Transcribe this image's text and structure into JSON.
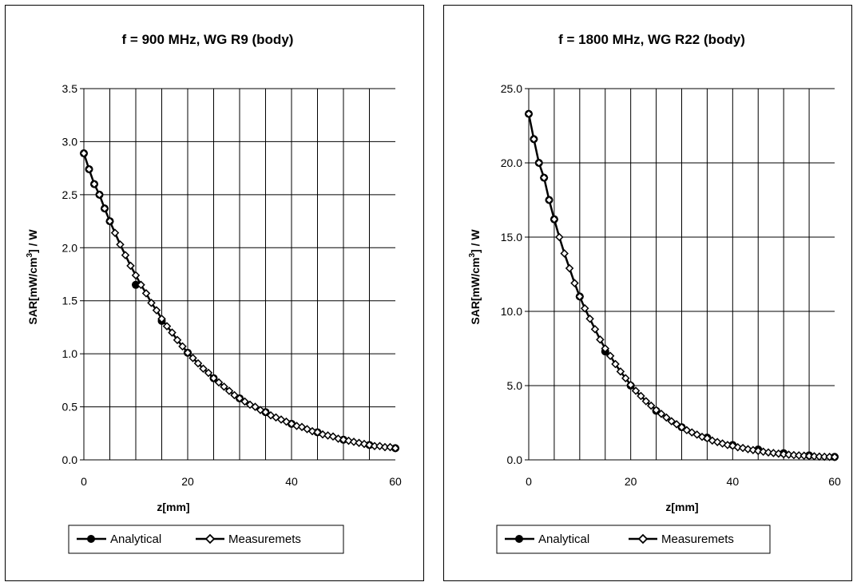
{
  "chart_data": [
    {
      "type": "line",
      "title": "f = 900 MHz, WG R9 (body)",
      "xlabel": "z[mm]",
      "ylabel": "SAR[mW/cm3] / W",
      "ylabel_main": "SAR[mW/cm",
      "ylabel_sup": "3",
      "ylabel_tail": "] / W",
      "xlim": [
        0,
        60
      ],
      "ylim": [
        0,
        3.5
      ],
      "x_ticks": [
        "0",
        "20",
        "40",
        "60"
      ],
      "y_ticks": [
        "0.0",
        "0.5",
        "1.0",
        "1.5",
        "2.0",
        "2.5",
        "3.0",
        "3.5"
      ],
      "grid": true,
      "legend_position": "bottom",
      "series": [
        {
          "name": "Analytical",
          "marker": "filled-circle",
          "x": [
            0,
            1,
            2,
            3,
            4,
            5,
            10,
            15,
            20,
            25,
            30,
            35,
            40,
            45,
            50,
            55,
            60
          ],
          "y": [
            2.89,
            2.74,
            2.6,
            2.5,
            2.37,
            2.25,
            1.65,
            1.31,
            1.01,
            0.77,
            0.58,
            0.45,
            0.34,
            0.26,
            0.19,
            0.14,
            0.11
          ]
        },
        {
          "name": "Measuremets",
          "marker": "open-diamond",
          "x": [
            0,
            1,
            2,
            3,
            4,
            5,
            6,
            7,
            8,
            9,
            10,
            11,
            12,
            13,
            14,
            15,
            16,
            17,
            18,
            19,
            20,
            21,
            22,
            23,
            24,
            25,
            26,
            27,
            28,
            29,
            30,
            31,
            32,
            33,
            34,
            35,
            36,
            37,
            38,
            39,
            40,
            41,
            42,
            43,
            44,
            45,
            46,
            47,
            48,
            49,
            50,
            51,
            52,
            53,
            54,
            55,
            56,
            57,
            58,
            59,
            60
          ],
          "y": [
            2.89,
            2.74,
            2.6,
            2.5,
            2.37,
            2.25,
            2.14,
            2.03,
            1.93,
            1.83,
            1.74,
            1.65,
            1.57,
            1.48,
            1.41,
            1.33,
            1.26,
            1.2,
            1.13,
            1.07,
            1.01,
            0.96,
            0.91,
            0.86,
            0.82,
            0.77,
            0.73,
            0.69,
            0.65,
            0.61,
            0.58,
            0.55,
            0.52,
            0.5,
            0.47,
            0.45,
            0.42,
            0.4,
            0.38,
            0.36,
            0.34,
            0.32,
            0.31,
            0.29,
            0.27,
            0.26,
            0.24,
            0.23,
            0.22,
            0.2,
            0.19,
            0.18,
            0.17,
            0.16,
            0.15,
            0.14,
            0.13,
            0.13,
            0.12,
            0.12,
            0.11
          ]
        }
      ]
    },
    {
      "type": "line",
      "title": "f = 1800 MHz, WG R22 (body)",
      "xlabel": "z[mm]",
      "ylabel": "SAR[mW/cm3] / W",
      "ylabel_main": "SAR[mW/cm",
      "ylabel_sup": "3",
      "ylabel_tail": "] / W",
      "xlim": [
        0,
        60
      ],
      "ylim": [
        0,
        25
      ],
      "x_ticks": [
        "0",
        "20",
        "40",
        "60"
      ],
      "y_ticks": [
        "0.0",
        "5.0",
        "10.0",
        "15.0",
        "20.0",
        "25.0"
      ],
      "grid": true,
      "legend_position": "bottom",
      "series": [
        {
          "name": "Analytical",
          "marker": "filled-circle",
          "x": [
            0,
            1,
            2,
            3,
            4,
            5,
            10,
            15,
            20,
            25,
            30,
            35,
            40,
            45,
            50,
            55,
            60
          ],
          "y": [
            23.3,
            21.6,
            20.0,
            19.0,
            17.5,
            16.2,
            11.0,
            7.3,
            5.0,
            3.3,
            2.2,
            1.5,
            1.0,
            0.7,
            0.45,
            0.3,
            0.2
          ]
        },
        {
          "name": "Measuremets",
          "marker": "open-diamond",
          "x": [
            0,
            1,
            2,
            3,
            4,
            5,
            6,
            7,
            8,
            9,
            10,
            11,
            12,
            13,
            14,
            15,
            16,
            17,
            18,
            19,
            20,
            21,
            22,
            23,
            24,
            25,
            26,
            27,
            28,
            29,
            30,
            31,
            32,
            33,
            34,
            35,
            36,
            37,
            38,
            39,
            40,
            41,
            42,
            43,
            44,
            45,
            46,
            47,
            48,
            49,
            50,
            51,
            52,
            53,
            54,
            55,
            56,
            57,
            58,
            59,
            60
          ],
          "y": [
            23.3,
            21.6,
            20.0,
            19.0,
            17.5,
            16.2,
            15.0,
            13.9,
            12.9,
            11.9,
            11.0,
            10.2,
            9.5,
            8.8,
            8.1,
            7.5,
            7.0,
            6.45,
            5.95,
            5.5,
            5.05,
            4.65,
            4.3,
            3.95,
            3.65,
            3.35,
            3.1,
            2.85,
            2.6,
            2.4,
            2.2,
            2.0,
            1.85,
            1.7,
            1.55,
            1.45,
            1.3,
            1.2,
            1.1,
            1.0,
            0.95,
            0.85,
            0.8,
            0.72,
            0.66,
            0.6,
            0.55,
            0.5,
            0.46,
            0.42,
            0.38,
            0.35,
            0.32,
            0.3,
            0.28,
            0.26,
            0.24,
            0.22,
            0.21,
            0.2,
            0.19
          ]
        }
      ]
    }
  ]
}
